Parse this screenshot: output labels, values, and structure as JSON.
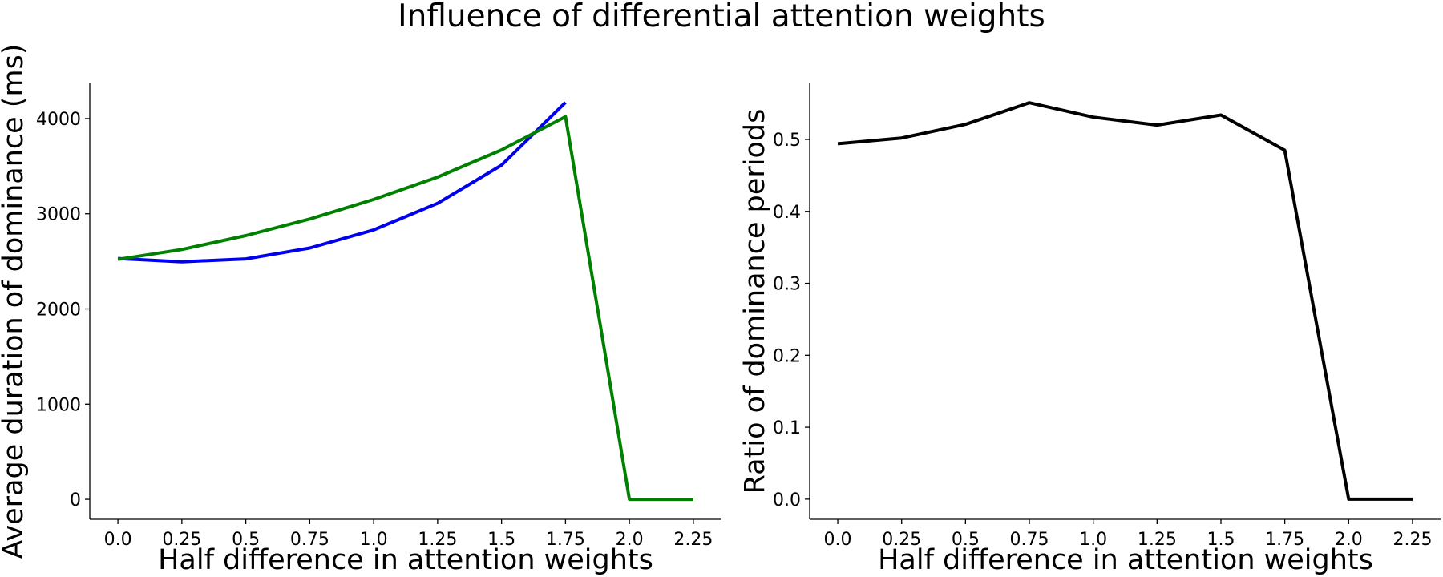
{
  "figure": {
    "title": "Influence of differential attention weights"
  },
  "chart_data": [
    {
      "type": "line",
      "xlabel": "Half difference in attention weights",
      "ylabel": "Average duration of dominance (ms)",
      "x": [
        0.0,
        0.25,
        0.5,
        0.75,
        1.0,
        1.25,
        1.5,
        1.75,
        2.0,
        2.25
      ],
      "x_tick_labels": [
        "0.0",
        "0.25",
        "0.5",
        "0.75",
        "1.0",
        "1.25",
        "1.5",
        "1.75",
        "2.0",
        "2.25"
      ],
      "xlim": [
        -0.11,
        2.36
      ],
      "ylim": [
        -210,
        4370
      ],
      "y_ticks": [
        0,
        1000,
        2000,
        3000,
        4000
      ],
      "y_tick_labels": [
        "0",
        "1000",
        "2000",
        "3000",
        "4000"
      ],
      "grid": false,
      "legend": false,
      "series": [
        {
          "color": "#0000ee",
          "x": [
            0.0,
            0.25,
            0.5,
            0.75,
            1.0,
            1.25,
            1.5,
            1.75
          ],
          "values": [
            2530,
            2495,
            2525,
            2640,
            2830,
            3110,
            3510,
            4170
          ]
        },
        {
          "color": "#008000",
          "x": [
            0.0,
            0.25,
            0.5,
            0.75,
            1.0,
            1.25,
            1.5,
            1.75,
            2.0,
            2.25
          ],
          "values": [
            2520,
            2625,
            2770,
            2945,
            3150,
            3385,
            3670,
            4020,
            0,
            0
          ]
        }
      ]
    },
    {
      "type": "line",
      "xlabel": "Half difference in attention weights",
      "ylabel": "Ratio of dominance periods",
      "x": [
        0.0,
        0.25,
        0.5,
        0.75,
        1.0,
        1.25,
        1.5,
        1.75,
        2.0,
        2.25
      ],
      "x_tick_labels": [
        "0.0",
        "0.25",
        "0.5",
        "0.75",
        "1.0",
        "1.25",
        "1.5",
        "1.75",
        "2.0",
        "2.25"
      ],
      "xlim": [
        -0.11,
        2.36
      ],
      "ylim": [
        -0.028,
        0.578
      ],
      "y_ticks": [
        0.0,
        0.1,
        0.2,
        0.3,
        0.4,
        0.5
      ],
      "y_tick_labels": [
        "0.0",
        "0.1",
        "0.2",
        "0.3",
        "0.4",
        "0.5"
      ],
      "grid": false,
      "legend": false,
      "series": [
        {
          "color": "#000000",
          "x": [
            0.0,
            0.25,
            0.5,
            0.75,
            1.0,
            1.25,
            1.5,
            1.75,
            2.0,
            2.25
          ],
          "values": [
            0.494,
            0.502,
            0.521,
            0.551,
            0.531,
            0.52,
            0.534,
            0.485,
            0.0,
            0.0
          ]
        }
      ]
    }
  ]
}
